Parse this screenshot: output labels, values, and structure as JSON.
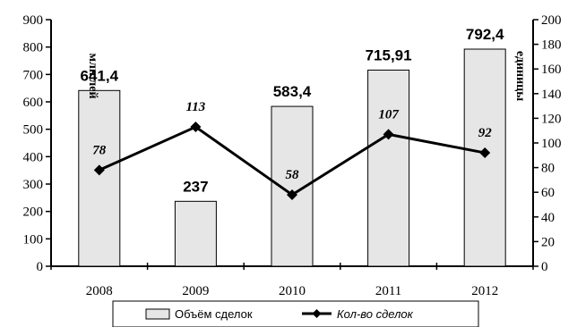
{
  "chart_data": {
    "type": "bar+line",
    "categories": [
      "2008",
      "2009",
      "2010",
      "2011",
      "2012"
    ],
    "series": [
      {
        "name": "Объём сделок",
        "type": "bar",
        "axis": "left",
        "values": [
          641.4,
          237,
          583.4,
          715.91,
          792.4
        ],
        "labels": [
          "641,4",
          "237",
          "583,4",
          "715,91",
          "792,4"
        ],
        "color": "#e6e6e6"
      },
      {
        "name": "Кол-во сделок",
        "type": "line",
        "axis": "right",
        "values": [
          78,
          113,
          58,
          107,
          92
        ],
        "labels": [
          "78",
          "113",
          "58",
          "107",
          "92"
        ],
        "color": "#000000",
        "marker": "diamond"
      }
    ],
    "y_left": {
      "label": "млн лей",
      "range": [
        0,
        900
      ],
      "ticks": [
        0,
        100,
        200,
        300,
        400,
        500,
        600,
        700,
        800,
        900
      ]
    },
    "y_right": {
      "label": "единицы",
      "range": [
        0,
        200
      ],
      "ticks": [
        0,
        20,
        40,
        60,
        80,
        100,
        120,
        140,
        160,
        180,
        200
      ]
    },
    "legend_position": "bottom"
  }
}
